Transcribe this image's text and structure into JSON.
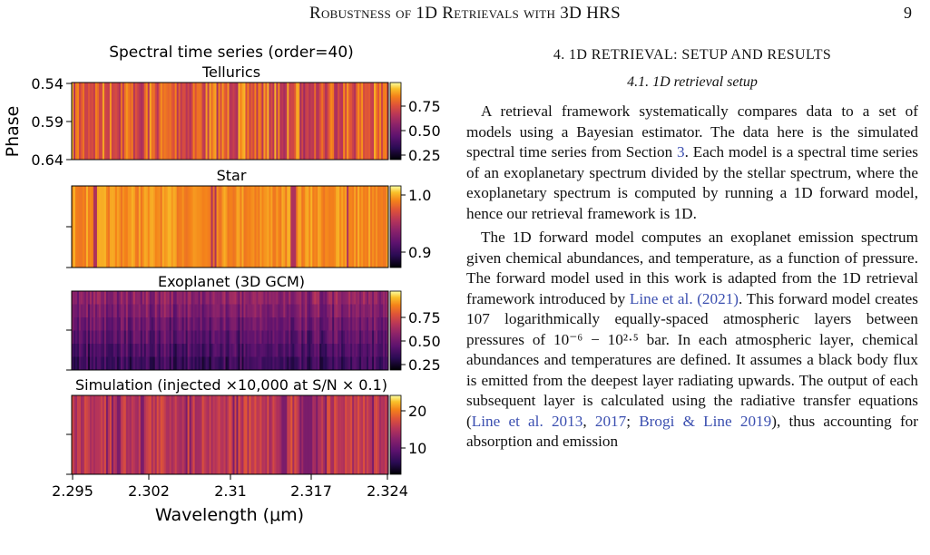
{
  "header": {
    "running_title": "Robustness of 1D Retrievals with 3D HRS",
    "page_number": "9"
  },
  "figure": {
    "suptitle": "Spectral time series (order=40)",
    "ylabel": "Phase",
    "xlabel": "Wavelength (μm)",
    "xtick_labels": [
      "2.295",
      "2.302",
      "2.31",
      "2.317",
      "2.324"
    ],
    "ytick_labels": [
      "0.54",
      "0.59",
      "0.64"
    ],
    "panels": [
      {
        "title": "Tellurics",
        "colorbar_ticks": [
          "0.75",
          "0.50",
          "0.25"
        ]
      },
      {
        "title": "Star",
        "colorbar_ticks": [
          "1.0",
          "0.9"
        ]
      },
      {
        "title": "Exoplanet (3D GCM)",
        "colorbar_ticks": [
          "0.75",
          "0.50",
          "0.25"
        ]
      },
      {
        "title": "Simulation (injected ×10,000 at S/N × 0.1)",
        "colorbar_ticks": [
          "20",
          "10"
        ]
      }
    ]
  },
  "chart_data": {
    "type": "heatmap",
    "title": "Spectral time series (order=40)",
    "xlabel": "Wavelength (μm)",
    "ylabel": "Phase",
    "xlim": [
      2.295,
      2.324
    ],
    "ylim": [
      0.64,
      0.54
    ],
    "colormap": "inferno",
    "panels": [
      {
        "name": "Tellurics",
        "colorbar_range": [
          0.15,
          0.95
        ],
        "colorbar_ticks": [
          0.25,
          0.5,
          0.75
        ]
      },
      {
        "name": "Star",
        "colorbar_range": [
          0.86,
          1.02
        ],
        "colorbar_ticks": [
          0.9,
          1.0
        ]
      },
      {
        "name": "Exoplanet (3D GCM)",
        "colorbar_range": [
          0.15,
          0.95
        ],
        "colorbar_ticks": [
          0.25,
          0.5,
          0.75
        ]
      },
      {
        "name": "Simulation (injected ×10,000 at S/N × 0.1)",
        "colorbar_range": [
          2,
          24
        ],
        "colorbar_ticks": [
          10,
          20
        ]
      }
    ]
  },
  "text": {
    "section_title": "4. 1D RETRIEVAL: SETUP AND RESULTS",
    "subsection_title": "4.1. 1D retrieval setup",
    "paragraphs": [
      [
        {
          "t": "A retrieval framework systematically compares data to a set of models using a Bayesian estimator. The data here is the simulated spectral time series from Section "
        },
        {
          "t": "3",
          "cite": true
        },
        {
          "t": ". Each model is a spectral time series of an exoplanetary spectrum divided by the stellar spectrum, where the exoplanetary spectrum is computed by running a 1D forward model, hence our retrieval framework is 1D."
        }
      ],
      [
        {
          "t": "The 1D forward model computes an exoplanet emission spectrum given chemical abundances, and temperature, as a function of pressure. The forward model used in this work is adapted from the 1D retrieval framework introduced by "
        },
        {
          "t": "Line et al. (2021)",
          "cite": true
        },
        {
          "t": ". This forward model creates 107 logarithmically equally-spaced atmospheric layers between pressures of 10⁻⁶ − 10²·⁵ bar. In each atmospheric layer, chemical abundances and temperatures are defined. It assumes a black body flux is emitted from the deepest layer radiating upwards. The output of each subsequent layer is calculated using the radiative transfer equations ("
        },
        {
          "t": "Line et al. 2013",
          "cite": true
        },
        {
          "t": ", "
        },
        {
          "t": "2017",
          "cite": true
        },
        {
          "t": "; "
        },
        {
          "t": "Brogi & Line 2019",
          "cite": true
        },
        {
          "t": "), thus accounting for absorption and emission"
        }
      ]
    ]
  }
}
